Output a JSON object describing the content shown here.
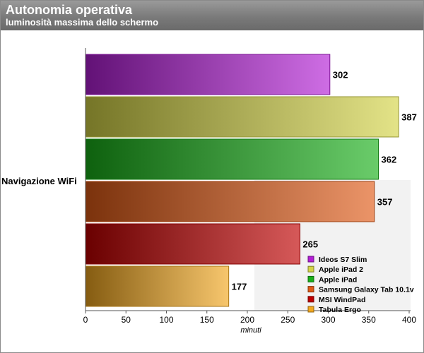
{
  "header": {
    "title": "Autonomia operativa",
    "subtitle": "luminosità massima dello schermo"
  },
  "chart_data": {
    "type": "bar",
    "orientation": "horizontal",
    "title": "Autonomia operativa",
    "subtitle": "luminosità massima dello schermo",
    "categories": [
      "Navigazione WiFi"
    ],
    "xlabel": "minuti",
    "ylabel": "",
    "xlim": [
      0,
      400
    ],
    "xticks": [
      0,
      50,
      100,
      150,
      200,
      250,
      300,
      350,
      400
    ],
    "grid": false,
    "legend_position": "bottom-right",
    "series": [
      {
        "name": "Ideos S7 Slim",
        "values": [
          302
        ],
        "color": "#b31fd6"
      },
      {
        "name": "Apple iPad 2",
        "values": [
          387
        ],
        "color": "#d4d446"
      },
      {
        "name": "Apple iPad",
        "values": [
          362
        ],
        "color": "#19b019"
      },
      {
        "name": "Samsung Galaxy Tab 10.1v",
        "values": [
          357
        ],
        "color": "#e05a16"
      },
      {
        "name": "MSI WindPad",
        "values": [
          265
        ],
        "color": "#c00000"
      },
      {
        "name": "Tabula Ergo",
        "values": [
          177
        ],
        "color": "#f2a81e"
      }
    ]
  }
}
